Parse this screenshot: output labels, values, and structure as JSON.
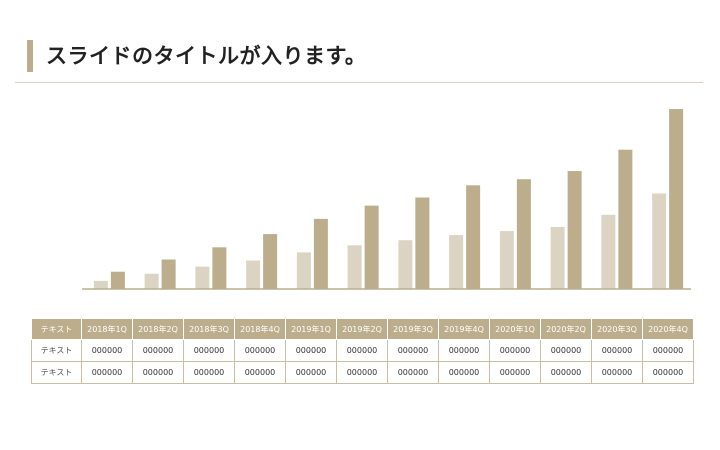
{
  "slide": {
    "title": "スライドのタイトルが入ります。"
  },
  "colors": {
    "accent": "#bcae8c",
    "light_bar": "#dcd4c3",
    "dark_bar": "#bcae8c",
    "divider": "#d9d2bf"
  },
  "chart_data": {
    "type": "bar",
    "categories": [
      "2018年1Q",
      "2018年2Q",
      "2018年3Q",
      "2018年4Q",
      "2019年1Q",
      "2019年2Q",
      "2019年3Q",
      "2019年4Q",
      "2020年1Q",
      "2020年2Q",
      "2020年3Q",
      "2020年4Q"
    ],
    "series": [
      {
        "values": [
          8,
          15,
          22,
          28,
          36,
          43,
          48,
          53,
          57,
          61,
          73,
          94
        ]
      },
      {
        "values": [
          17,
          29,
          41,
          54,
          69,
          82,
          90,
          102,
          108,
          116,
          137,
          177
        ]
      }
    ],
    "ylim": [
      0,
      180
    ],
    "grid": false,
    "legend": "none"
  },
  "table": {
    "header_label": "テキスト",
    "columns": [
      "2018年1Q",
      "2018年2Q",
      "2018年3Q",
      "2018年4Q",
      "2019年1Q",
      "2019年2Q",
      "2019年3Q",
      "2019年4Q",
      "2020年1Q",
      "2020年2Q",
      "2020年3Q",
      "2020年4Q"
    ],
    "rows": [
      {
        "label": "テキスト",
        "cells": [
          "000000",
          "000000",
          "000000",
          "000000",
          "000000",
          "000000",
          "000000",
          "000000",
          "000000",
          "000000",
          "000000",
          "000000"
        ]
      },
      {
        "label": "テキスト",
        "cells": [
          "000000",
          "000000",
          "000000",
          "000000",
          "000000",
          "000000",
          "000000",
          "000000",
          "000000",
          "000000",
          "000000",
          "000000"
        ]
      }
    ]
  }
}
